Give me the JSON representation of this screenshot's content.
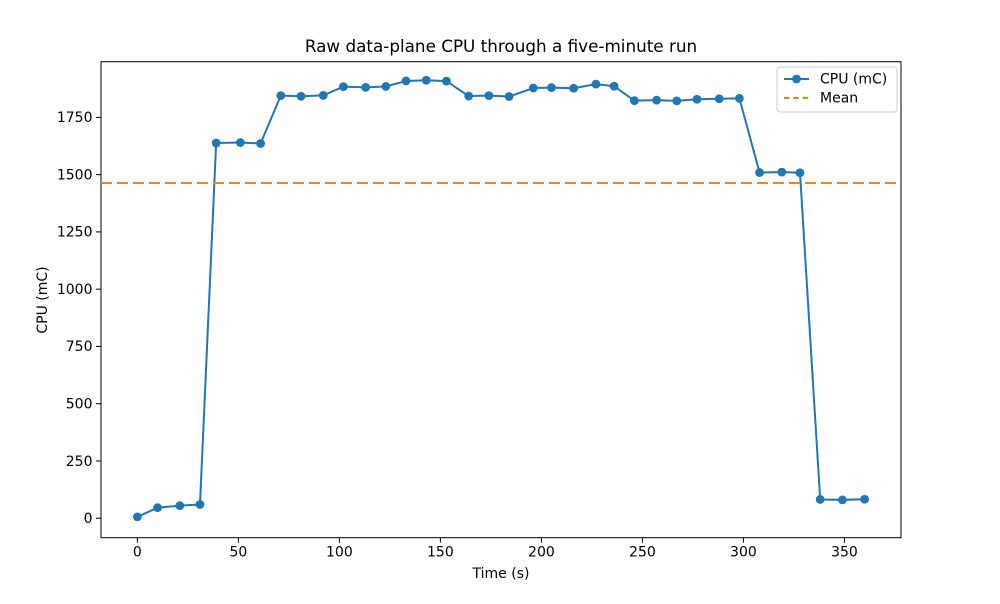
{
  "chart_data": {
    "type": "line",
    "title": "Raw data-plane CPU through a five-minute run",
    "xlabel": "Time (s)",
    "ylabel": "CPU (mC)",
    "xlim": [
      -18,
      378
    ],
    "ylim": [
      -85,
      1993
    ],
    "xticks": [
      0,
      50,
      100,
      150,
      200,
      250,
      300,
      350
    ],
    "yticks": [
      0,
      250,
      500,
      750,
      1000,
      1250,
      1500,
      1750
    ],
    "grid": false,
    "legend_position": "upper right",
    "background": "#ffffff",
    "axis_color": "#000000",
    "series": [
      {
        "name": "CPU (mC)",
        "color": "#1f77b4",
        "style": "solid-line-circle-markers",
        "x": [
          0,
          10,
          21,
          31,
          39,
          51,
          61,
          71,
          81,
          92,
          102,
          113,
          123,
          133,
          143,
          153,
          164,
          174,
          184,
          196,
          205,
          216,
          227,
          236,
          246,
          257,
          267,
          277,
          288,
          298,
          308,
          319,
          328,
          338,
          349,
          360
        ],
        "y": [
          6,
          46,
          55,
          60,
          1638,
          1640,
          1636,
          1845,
          1842,
          1846,
          1884,
          1881,
          1885,
          1909,
          1912,
          1908,
          1843,
          1845,
          1841,
          1878,
          1880,
          1877,
          1895,
          1886,
          1823,
          1825,
          1822,
          1829,
          1831,
          1833,
          1509,
          1511,
          1508,
          82,
          80,
          83
        ]
      },
      {
        "name": "Mean",
        "color": "#ff7f0e",
        "style": "dashed-horizontal-line",
        "value": 1463.2
      }
    ]
  }
}
